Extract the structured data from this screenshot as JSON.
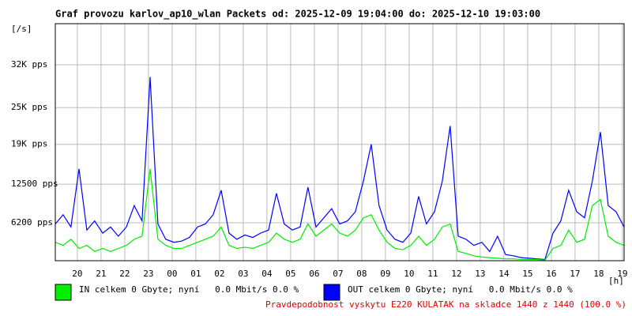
{
  "chart_data": {
    "type": "line",
    "title": "Graf provozu karlov_ap10_wlan Packets od: 2025-12-09 19:04:00 do: 2025-12-10 19:03:00",
    "y_label": "[/s]",
    "x_label": "[h]",
    "footnote": "Pravdepodobnost vyskytu E220 KULATAK na skladce 1440 z 1440 (100.0 %)",
    "grid": true,
    "xlim": [
      19.07,
      43.07
    ],
    "ylim": [
      0,
      38700
    ],
    "xticks": [
      20,
      21,
      22,
      23,
      {
        "value": 24,
        "label": "00"
      },
      {
        "value": 25,
        "label": "01"
      },
      {
        "value": 26,
        "label": "02"
      },
      {
        "value": 27,
        "label": "03"
      },
      {
        "value": 28,
        "label": "04"
      },
      {
        "value": 29,
        "label": "05"
      },
      {
        "value": 30,
        "label": "06"
      },
      {
        "value": 31,
        "label": "07"
      },
      {
        "value": 32,
        "label": "08"
      },
      {
        "value": 33,
        "label": "09"
      },
      {
        "value": 34,
        "label": "10"
      },
      {
        "value": 35,
        "label": "11"
      },
      {
        "value": 36,
        "label": "12"
      },
      {
        "value": 37,
        "label": "13"
      },
      {
        "value": 38,
        "label": "14"
      },
      {
        "value": 39,
        "label": "15"
      },
      {
        "value": 40,
        "label": "16"
      },
      {
        "value": 41,
        "label": "17"
      },
      {
        "value": 42,
        "label": "18"
      },
      {
        "value": 43,
        "label": "19"
      }
    ],
    "yticks": [
      {
        "value": 6200,
        "label": "6200 pps"
      },
      {
        "value": 12500,
        "label": "12500 pps"
      },
      {
        "value": 19000,
        "label": "19K pps"
      },
      {
        "value": 25000,
        "label": "25K pps"
      },
      {
        "value": 32000,
        "label": "32K pps"
      }
    ],
    "x": [
      19.07,
      19.4,
      19.73,
      20.07,
      20.4,
      20.73,
      21.07,
      21.4,
      21.73,
      22.07,
      22.4,
      22.73,
      23.07,
      23.4,
      23.73,
      24.07,
      24.4,
      24.73,
      25.07,
      25.4,
      25.73,
      26.07,
      26.4,
      26.73,
      27.07,
      27.4,
      27.73,
      28.07,
      28.4,
      28.73,
      29.07,
      29.4,
      29.73,
      30.07,
      30.4,
      30.73,
      31.07,
      31.4,
      31.73,
      32.07,
      32.4,
      32.73,
      33.07,
      33.4,
      33.73,
      34.07,
      34.4,
      34.73,
      35.07,
      35.4,
      35.73,
      36.07,
      36.4,
      36.73,
      37.07,
      37.4,
      37.73,
      38.07,
      38.4,
      38.73,
      39.07,
      39.4,
      39.73,
      40.07,
      40.4,
      40.73,
      41.07,
      41.4,
      41.73,
      42.07,
      42.4,
      42.73,
      43.07
    ],
    "series": [
      {
        "name": "OUT celkem 0 Gbyte; nyní   0.0 Mbit/s 0.0 %",
        "color": "#0000ff",
        "values": [
          6000,
          7500,
          5500,
          15000,
          5000,
          6500,
          4500,
          5500,
          4000,
          5500,
          9000,
          6500,
          30000,
          6000,
          3500,
          3000,
          3200,
          3800,
          5500,
          6000,
          7500,
          11500,
          4500,
          3500,
          4200,
          3800,
          4500,
          5000,
          11000,
          6000,
          5000,
          5500,
          12000,
          5500,
          7000,
          8500,
          6000,
          6500,
          8000,
          13000,
          19000,
          9000,
          5000,
          3500,
          3000,
          4500,
          10500,
          6000,
          8000,
          13000,
          22000,
          4000,
          3500,
          2500,
          3000,
          1500,
          4000,
          1000,
          800,
          500,
          400,
          300,
          200,
          4500,
          6500,
          11500,
          8000,
          7000,
          13000,
          21000,
          9000,
          8000,
          5500
        ]
      },
      {
        "name": "IN celkem 0 Gbyte; nyní   0.0 Mbit/s 0.0 %",
        "color": "#00ee00",
        "values": [
          3000,
          2500,
          3500,
          2000,
          2500,
          1500,
          2000,
          1500,
          2000,
          2500,
          3500,
          4000,
          15000,
          3500,
          2500,
          2000,
          2000,
          2500,
          3000,
          3500,
          4000,
          5500,
          2500,
          2000,
          2200,
          2000,
          2500,
          3000,
          4500,
          3500,
          3000,
          3500,
          6000,
          4000,
          5000,
          6000,
          4500,
          4000,
          5000,
          7000,
          7500,
          5000,
          3000,
          2000,
          1800,
          2500,
          4000,
          2500,
          3500,
          5500,
          6000,
          1500,
          1200,
          800,
          600,
          500,
          400,
          300,
          300,
          200,
          200,
          200,
          100,
          2000,
          2500,
          5000,
          3000,
          3500,
          9000,
          10000,
          4000,
          3000,
          2500
        ]
      }
    ]
  }
}
